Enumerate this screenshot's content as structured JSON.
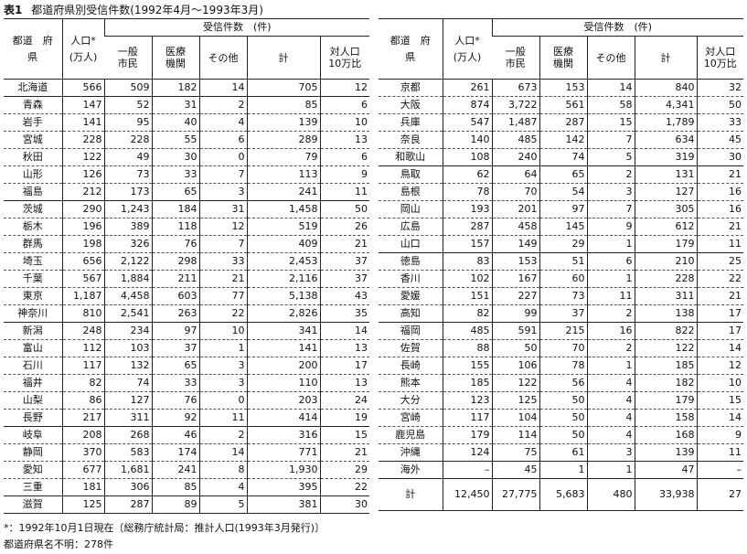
{
  "caption": {
    "number": "表1",
    "text": "都道府県別受信件数(1992年4月～1993年3月)"
  },
  "headers": {
    "pref": [
      "都道　府",
      "県"
    ],
    "pop": [
      "人口*",
      "(万人)"
    ],
    "group": "受信件数　(件)",
    "general": [
      "一般",
      "市民"
    ],
    "medical": [
      "医療",
      "機関"
    ],
    "other": "その他",
    "total": "計",
    "ratio": [
      "対人口",
      "10万比"
    ]
  },
  "left_rows": [
    {
      "pref": "北海道",
      "pop": "566",
      "general": "509",
      "medical": "182",
      "other": "14",
      "total": "705",
      "ratio": "12",
      "sep": "solid"
    },
    {
      "pref": "青森",
      "pop": "147",
      "general": "52",
      "medical": "31",
      "other": "2",
      "total": "85",
      "ratio": "6"
    },
    {
      "pref": "岩手",
      "pop": "141",
      "general": "95",
      "medical": "40",
      "other": "4",
      "total": "139",
      "ratio": "10"
    },
    {
      "pref": "宮城",
      "pop": "228",
      "general": "228",
      "medical": "55",
      "other": "6",
      "total": "289",
      "ratio": "13"
    },
    {
      "pref": "秋田",
      "pop": "122",
      "general": "49",
      "medical": "30",
      "other": "0",
      "total": "79",
      "ratio": "6"
    },
    {
      "pref": "山形",
      "pop": "126",
      "general": "73",
      "medical": "33",
      "other": "7",
      "total": "113",
      "ratio": "9"
    },
    {
      "pref": "福島",
      "pop": "212",
      "general": "173",
      "medical": "65",
      "other": "3",
      "total": "241",
      "ratio": "11",
      "sep": "solid"
    },
    {
      "pref": "茨城",
      "pop": "290",
      "general": "1,243",
      "medical": "184",
      "other": "31",
      "total": "1,458",
      "ratio": "50"
    },
    {
      "pref": "栃木",
      "pop": "196",
      "general": "389",
      "medical": "118",
      "other": "12",
      "total": "519",
      "ratio": "26"
    },
    {
      "pref": "群馬",
      "pop": "198",
      "general": "326",
      "medical": "76",
      "other": "7",
      "total": "409",
      "ratio": "21"
    },
    {
      "pref": "埼玉",
      "pop": "656",
      "general": "2,122",
      "medical": "298",
      "other": "33",
      "total": "2,453",
      "ratio": "37"
    },
    {
      "pref": "千葉",
      "pop": "567",
      "general": "1,884",
      "medical": "211",
      "other": "21",
      "total": "2,116",
      "ratio": "37"
    },
    {
      "pref": "東京",
      "pop": "1,187",
      "general": "4,458",
      "medical": "603",
      "other": "77",
      "total": "5,138",
      "ratio": "43"
    },
    {
      "pref": "神奈川",
      "pop": "810",
      "general": "2,541",
      "medical": "263",
      "other": "22",
      "total": "2,826",
      "ratio": "35",
      "sep": "solid"
    },
    {
      "pref": "新潟",
      "pop": "248",
      "general": "234",
      "medical": "97",
      "other": "10",
      "total": "341",
      "ratio": "14"
    },
    {
      "pref": "富山",
      "pop": "112",
      "general": "103",
      "medical": "37",
      "other": "1",
      "total": "141",
      "ratio": "13"
    },
    {
      "pref": "石川",
      "pop": "117",
      "general": "132",
      "medical": "65",
      "other": "3",
      "total": "200",
      "ratio": "17"
    },
    {
      "pref": "福井",
      "pop": "82",
      "general": "74",
      "medical": "33",
      "other": "3",
      "total": "110",
      "ratio": "13"
    },
    {
      "pref": "山梨",
      "pop": "86",
      "general": "127",
      "medical": "76",
      "other": "0",
      "total": "203",
      "ratio": "24"
    },
    {
      "pref": "長野",
      "pop": "217",
      "general": "311",
      "medical": "92",
      "other": "11",
      "total": "414",
      "ratio": "19",
      "sep": "solid"
    },
    {
      "pref": "岐阜",
      "pop": "208",
      "general": "268",
      "medical": "46",
      "other": "2",
      "total": "316",
      "ratio": "15"
    },
    {
      "pref": "静岡",
      "pop": "370",
      "general": "583",
      "medical": "174",
      "other": "14",
      "total": "771",
      "ratio": "21"
    },
    {
      "pref": "愛知",
      "pop": "677",
      "general": "1,681",
      "medical": "241",
      "other": "8",
      "total": "1,930",
      "ratio": "29"
    },
    {
      "pref": "三重",
      "pop": "181",
      "general": "306",
      "medical": "85",
      "other": "4",
      "total": "395",
      "ratio": "22",
      "sep": "solid"
    },
    {
      "pref": "滋賀",
      "pop": "125",
      "general": "287",
      "medical": "89",
      "other": "5",
      "total": "381",
      "ratio": "30"
    }
  ],
  "right_rows": [
    {
      "pref": "京都",
      "pop": "261",
      "general": "673",
      "medical": "153",
      "other": "14",
      "total": "840",
      "ratio": "32"
    },
    {
      "pref": "大阪",
      "pop": "874",
      "general": "3,722",
      "medical": "561",
      "other": "58",
      "total": "4,341",
      "ratio": "50"
    },
    {
      "pref": "兵庫",
      "pop": "547",
      "general": "1,487",
      "medical": "287",
      "other": "15",
      "total": "1,789",
      "ratio": "33"
    },
    {
      "pref": "奈良",
      "pop": "140",
      "general": "485",
      "medical": "142",
      "other": "7",
      "total": "634",
      "ratio": "45"
    },
    {
      "pref": "和歌山",
      "pop": "108",
      "general": "240",
      "medical": "74",
      "other": "5",
      "total": "319",
      "ratio": "30",
      "sep": "solid"
    },
    {
      "pref": "鳥取",
      "pop": "62",
      "general": "64",
      "medical": "65",
      "other": "2",
      "total": "131",
      "ratio": "21"
    },
    {
      "pref": "島根",
      "pop": "78",
      "general": "70",
      "medical": "54",
      "other": "3",
      "total": "127",
      "ratio": "16"
    },
    {
      "pref": "岡山",
      "pop": "193",
      "general": "201",
      "medical": "97",
      "other": "7",
      "total": "305",
      "ratio": "16"
    },
    {
      "pref": "広島",
      "pop": "287",
      "general": "458",
      "medical": "145",
      "other": "9",
      "total": "612",
      "ratio": "21"
    },
    {
      "pref": "山口",
      "pop": "157",
      "general": "149",
      "medical": "29",
      "other": "1",
      "total": "179",
      "ratio": "11",
      "sep": "solid"
    },
    {
      "pref": "徳島",
      "pop": "83",
      "general": "153",
      "medical": "51",
      "other": "6",
      "total": "210",
      "ratio": "25"
    },
    {
      "pref": "香川",
      "pop": "102",
      "general": "167",
      "medical": "60",
      "other": "1",
      "total": "228",
      "ratio": "22"
    },
    {
      "pref": "愛媛",
      "pop": "151",
      "general": "227",
      "medical": "73",
      "other": "11",
      "total": "311",
      "ratio": "21"
    },
    {
      "pref": "高知",
      "pop": "82",
      "general": "99",
      "medical": "37",
      "other": "2",
      "total": "138",
      "ratio": "17",
      "sep": "solid"
    },
    {
      "pref": "福岡",
      "pop": "485",
      "general": "591",
      "medical": "215",
      "other": "16",
      "total": "822",
      "ratio": "17"
    },
    {
      "pref": "佐賀",
      "pop": "88",
      "general": "50",
      "medical": "70",
      "other": "2",
      "total": "122",
      "ratio": "14"
    },
    {
      "pref": "長崎",
      "pop": "155",
      "general": "106",
      "medical": "78",
      "other": "1",
      "total": "185",
      "ratio": "12"
    },
    {
      "pref": "熊本",
      "pop": "185",
      "general": "122",
      "medical": "56",
      "other": "4",
      "total": "182",
      "ratio": "10"
    },
    {
      "pref": "大分",
      "pop": "123",
      "general": "125",
      "medical": "50",
      "other": "4",
      "total": "179",
      "ratio": "15"
    },
    {
      "pref": "宮崎",
      "pop": "117",
      "general": "104",
      "medical": "50",
      "other": "4",
      "total": "158",
      "ratio": "14"
    },
    {
      "pref": "鹿児島",
      "pop": "179",
      "general": "114",
      "medical": "50",
      "other": "4",
      "total": "168",
      "ratio": "9"
    },
    {
      "pref": "沖縄",
      "pop": "124",
      "general": "75",
      "medical": "61",
      "other": "3",
      "total": "139",
      "ratio": "11",
      "sep": "solid"
    },
    {
      "pref": "海外",
      "pop": "–",
      "general": "45",
      "medical": "1",
      "other": "1",
      "total": "47",
      "ratio": "–",
      "sep": "solid"
    },
    {
      "pref": "計",
      "pop": "12,450",
      "general": "27,775",
      "medical": "5,683",
      "other": "480",
      "total": "33,938",
      "ratio": "27",
      "kind": "total"
    }
  ],
  "footnotes": [
    "*：1992年10月1日現在〔総務庁統計局：推計人口(1993年3月発行)〕",
    "都道府県名不明：278件"
  ]
}
